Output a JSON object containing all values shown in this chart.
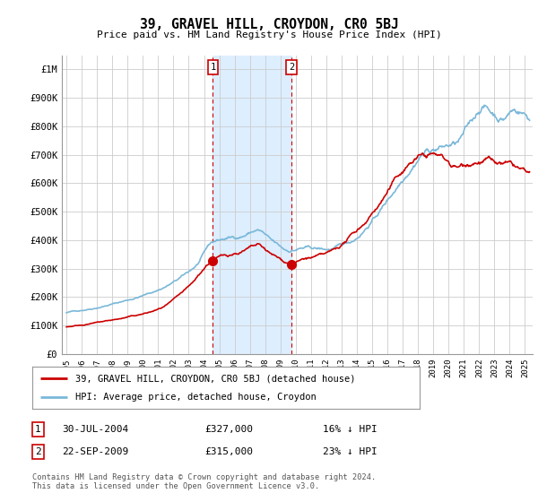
{
  "title": "39, GRAVEL HILL, CROYDON, CR0 5BJ",
  "subtitle": "Price paid vs. HM Land Registry's House Price Index (HPI)",
  "ylabel_ticks": [
    "£0",
    "£100K",
    "£200K",
    "£300K",
    "£400K",
    "£500K",
    "£600K",
    "£700K",
    "£800K",
    "£900K",
    "£1M"
  ],
  "ytick_values": [
    0,
    100000,
    200000,
    300000,
    400000,
    500000,
    600000,
    700000,
    800000,
    900000,
    1000000
  ],
  "ylim": [
    0,
    1050000
  ],
  "xlim_start": 1994.7,
  "xlim_end": 2025.5,
  "hpi_color": "#7ab8d9",
  "price_color": "#cc0000",
  "shade_color": "#ddeeff",
  "transaction1_x": 2004.58,
  "transaction1_y": 327000,
  "transaction2_x": 2009.73,
  "transaction2_y": 315000,
  "transaction1_label": "30-JUL-2004",
  "transaction1_price": "£327,000",
  "transaction1_hpi": "16% ↓ HPI",
  "transaction2_label": "22-SEP-2009",
  "transaction2_price": "£315,000",
  "transaction2_hpi": "23% ↓ HPI",
  "legend_line1": "39, GRAVEL HILL, CROYDON, CR0 5BJ (detached house)",
  "legend_line2": "HPI: Average price, detached house, Croydon",
  "footer": "Contains HM Land Registry data © Crown copyright and database right 2024.\nThis data is licensed under the Open Government Licence v3.0.",
  "xtick_years": [
    1995,
    1996,
    1997,
    1998,
    1999,
    2000,
    2001,
    2002,
    2003,
    2004,
    2005,
    2006,
    2007,
    2008,
    2009,
    2010,
    2011,
    2012,
    2013,
    2014,
    2015,
    2016,
    2017,
    2018,
    2019,
    2020,
    2021,
    2022,
    2023,
    2024,
    2025
  ]
}
